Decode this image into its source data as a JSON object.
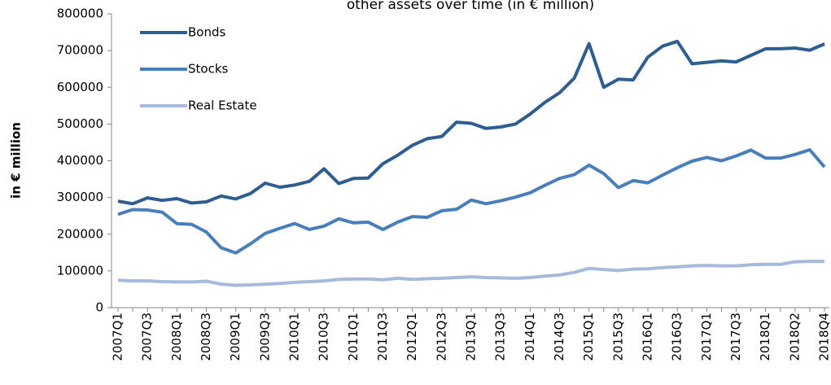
{
  "chart_data": {
    "type": "line",
    "title": "other assets over time (in € million)",
    "y_label": "in € million",
    "categories": [
      "2007Q1",
      null,
      "2007Q3",
      null,
      "2008Q1",
      null,
      "2008Q3",
      null,
      "2009Q1",
      null,
      "2009Q3",
      null,
      "2010Q1",
      null,
      "2010Q3",
      null,
      "2011Q1",
      null,
      "2011Q3",
      null,
      "2012Q1",
      null,
      "2012Q3",
      null,
      "2013Q1",
      null,
      "2013Q3",
      null,
      "2014Q1",
      null,
      "2014Q3",
      null,
      "2015Q1",
      null,
      "2015Q3",
      null,
      "2016Q1",
      null,
      "2016Q3",
      null,
      "2017Q1",
      null,
      "2017Q3",
      null,
      "2018Q1",
      null,
      "2018Q2",
      null,
      "2018Q4"
    ],
    "series": [
      {
        "name": "Bonds",
        "color": "#2f5d8f",
        "values": [
          290000,
          283000,
          299000,
          292000,
          297000,
          285000,
          288000,
          304000,
          296000,
          311000,
          339000,
          328000,
          334000,
          344000,
          378000,
          338000,
          352000,
          353000,
          392000,
          415000,
          442000,
          460000,
          466000,
          505000,
          502000,
          488000,
          492000,
          500000,
          527000,
          559000,
          585000,
          625000,
          719000,
          600000,
          622000,
          620000,
          682000,
          712000,
          725000,
          664000,
          668000,
          672000,
          669000,
          687000,
          705000,
          705000,
          707000,
          701000,
          718000
        ]
      },
      {
        "name": "Stocks",
        "color": "#4a7ebb",
        "values": [
          254000,
          267000,
          266000,
          260000,
          229000,
          227000,
          206000,
          163000,
          149000,
          174000,
          202000,
          216000,
          229000,
          213000,
          222000,
          242000,
          231000,
          233000,
          213000,
          233000,
          248000,
          246000,
          264000,
          268000,
          293000,
          283000,
          291000,
          301000,
          313000,
          333000,
          352000,
          362000,
          388000,
          365000,
          327000,
          346000,
          340000,
          361000,
          381000,
          399000,
          409000,
          400000,
          413000,
          429000,
          407000,
          407000,
          417000,
          430000,
          383000
        ]
      },
      {
        "name": "Real Estate",
        "color": "#a7b9dc",
        "values": [
          75000,
          73000,
          73000,
          71000,
          70000,
          70000,
          72000,
          64000,
          61000,
          62000,
          64000,
          66000,
          69000,
          71000,
          73000,
          77000,
          78000,
          78000,
          76000,
          80000,
          77000,
          79000,
          80000,
          82000,
          84000,
          82000,
          81000,
          80000,
          82000,
          86000,
          89000,
          96000,
          107000,
          104000,
          101000,
          105000,
          106000,
          109000,
          111000,
          114000,
          115000,
          114000,
          114000,
          117000,
          118000,
          118000,
          125000,
          126000,
          126000
        ]
      }
    ],
    "ylim": [
      0,
      800000
    ],
    "yticks": [
      0,
      100000,
      200000,
      300000,
      400000,
      500000,
      600000,
      700000,
      800000
    ],
    "grid": false,
    "legend": "top-left"
  }
}
